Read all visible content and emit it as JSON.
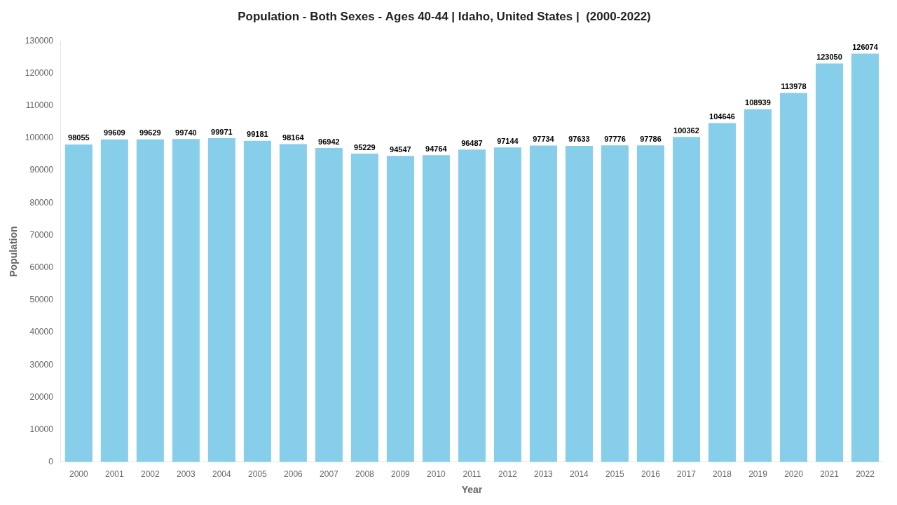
{
  "chart_data": {
    "type": "bar",
    "title": "Population - Both Sexes - Ages 40-44 | Idaho, United States |  (2000-2022)",
    "x_label": "Year",
    "y_label": "Population",
    "categories": [
      "2000",
      "2001",
      "2002",
      "2003",
      "2004",
      "2005",
      "2006",
      "2007",
      "2008",
      "2009",
      "2010",
      "2011",
      "2012",
      "2013",
      "2014",
      "2015",
      "2016",
      "2017",
      "2018",
      "2019",
      "2020",
      "2021",
      "2022"
    ],
    "values": [
      98055,
      99609,
      99629,
      99740,
      99971,
      99181,
      98164,
      96942,
      95229,
      94547,
      94764,
      96487,
      97144,
      97734,
      97633,
      97776,
      97786,
      100362,
      104646,
      108939,
      113978,
      123050,
      126074
    ],
    "color": "#87CEEB",
    "ylim": [
      0,
      130000
    ],
    "yticks": [
      0,
      10000,
      20000,
      30000,
      40000,
      50000,
      60000,
      70000,
      80000,
      90000,
      100000,
      110000,
      120000,
      130000
    ],
    "grid": false,
    "data_labels": true
  }
}
